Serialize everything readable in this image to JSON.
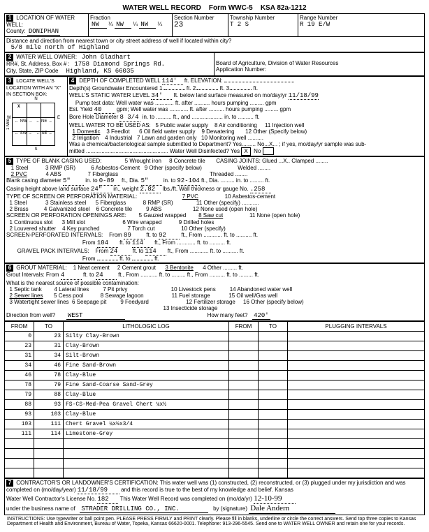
{
  "header": {
    "title": "WATER WELL RECORD",
    "form": "Form WWC-5",
    "ksa": "KSA 82a-1212"
  },
  "loc": {
    "label": "LOCATION OF WATER WELL:",
    "county_label": "County:",
    "county": "DONIPHAN",
    "fraction_label": "Fraction",
    "f1": "NW",
    "f1q": "¼",
    "f2": "NW",
    "f2q": "¼",
    "f3": "NW",
    "f3q": "¼",
    "section_label": "Section Number",
    "section": "23",
    "township_label": "Township Number",
    "township": "T  2   S",
    "range_label": "Range Number",
    "range": "R  19   E/W",
    "dist_label": "Distance and direction from nearest town or city street address of well if located within city?",
    "dist": "5/8 mile north of Highland"
  },
  "owner": {
    "label": "WATER WELL OWNER:",
    "name": "John Gladhart",
    "addr_label": "RR#, St. Address, Box # :",
    "addr": "1758 Diamond Springs Rd.",
    "city_label": "City, State, ZIP Code",
    "city": "Highland, KS  66035",
    "board": "Board of Agriculture, Division of Water Resources",
    "appnum": "Application Number:"
  },
  "locate_box": {
    "label": "LOCATE WELL'S LOCATION WITH AN \"X\" IN SECTION BOX:",
    "mile": "1 Mile",
    "n": "N",
    "s": "S",
    "e": "E",
    "w": "W",
    "nw": "NW",
    "ne": "NE",
    "sw": "SW",
    "se": "SE",
    "x": "X"
  },
  "depth": {
    "label": "DEPTH OF COMPLETED WELL",
    "val": "114'",
    "ft": "ft.",
    "elev_label": "ELEVATION:",
    "gw1": "Depth(s) Groundwater Encountered   1.",
    "gw2": "ft.   2.",
    "gw3": "ft.   3.",
    "static_label": "WELL'S STATIC WATER LEVEL",
    "static": "34'",
    "static_rest": "ft. below land surface measured on mo/day/yr",
    "static_date": "11/18/99",
    "pump_line": "Pump test data:   Well water was ............ ft. after .......... hours pumping ......... gpm",
    "est_yield": "Est. Yield",
    "est_yield_v": "40",
    "est_yield_rest": "gpm;  Well water was ............ ft. after .......... hours pumping ......... gpm",
    "bore": "Bore Hole Diameter",
    "bore_v": "8 3/4",
    "bore_rest": "in. to .......... ft., and .................... in. to .......... ft.",
    "use_label": "WELL WATER TO BE USED AS:",
    "u1": "1 Domestic",
    "u2": "2 Irrigation",
    "u3": "3 Feedlot",
    "u4": "4 Industrial",
    "u5": "5 Public water supply",
    "u6": "6 Oil field water supply",
    "u7": "7 Lawn and garden only",
    "u8": "8 Air conditioning",
    "u9": "9 Dewatering",
    "u10": "10 Monitoring well",
    "u11": "11 Injection well",
    "u12": "12 Other (Specify below)",
    "chem": "Was a chemical/bacteriological sample submitted to Department? Yes......... No...X... ; if yes, mo/day/yr sample was sub-",
    "chem2": "mitted ..................................................... Water Well Disinfected?  Yes",
    "chem_yes": "X",
    "chem_no": "No"
  },
  "casing": {
    "label": "TYPE OF BLANK CASING USED:",
    "c1": "1 Steel",
    "c2": "2 PVC",
    "c3": "3 RMP (SR)",
    "c4": "4 ABS",
    "c5": "5 Wrought iron",
    "c6": "6 Asbestos-Cement",
    "c7": "7 Fiberglass",
    "c8": "8 Concrete tile",
    "c9": "9 Other (specify below)",
    "joints": "CASING JOINTS: Glued ...X.. Clamped ........",
    "joints2": "Welded ........",
    "joints3": "Threaded ........",
    "dia_label": "Blank casing diameter",
    "dia_v": "5\"",
    "dia_to": "in. to",
    "dia_d1": "0-89",
    "dia_mid": "ft., Dia.",
    "dia_v2": "5\"",
    "dia_d2": "92-104",
    "dia_end": "ft., Dia. ......... in. to ......... ft.",
    "ht_label": "Casing height above land surface",
    "ht_v": "24\"",
    "ht_wt": "in., weight",
    "wt_v": "2.82",
    "ht_rest": "lbs./ft. Wall thickness or gauge No.",
    "gauge": ".258",
    "screen_label": "TYPE OF SCREEN OR PERFORATION MATERIAL:",
    "s1": "1 Steel",
    "s2": "2 Brass",
    "s3": "3 Stainless steel",
    "s4": "4 Galvanized steel",
    "s5": "5 Fiberglass",
    "s6": "6 Concrete tile",
    "s7": "7 PVC",
    "s8": "8 RMP (SR)",
    "s9": "9 ABS",
    "s10": "10 Asbestos-cement",
    "s11": "11 Other (specify) ...........",
    "s12": "12 None used (open hole)",
    "open_label": "SCREEN OR PERFORATION OPENINGS ARE:",
    "o1": "1 Continuous slot",
    "o2": "2 Louvered shutter",
    "o3": "3 Mill slot",
    "o4": "4 Key punched",
    "o5": "5 Gauzed wrapped",
    "o6": "6 Wire wrapped",
    "o7": "7 Torch cut",
    "o8": "8 Saw cut",
    "o9": "9 Drilled holes",
    "o10": "10 Other (specify)",
    "o11": "11 None (open hole)",
    "spi_label": "SCREEN-PERFORATED INTERVALS:",
    "spi_from": "From",
    "spi1f": "89",
    "spi1t": "92",
    "spi2f": "104",
    "spi2t": "114",
    "gpi_label": "GRAVEL PACK INTERVALS:",
    "gpi1f": "24",
    "gpi1t": "114",
    "ft_to": "ft. to",
    "ft_from": "ft., From ............ ft. to .......... ft."
  },
  "grout": {
    "label": "GROUT MATERIAL:",
    "g1": "1 Neat cement",
    "g2": "2 Cement grout",
    "g3": "3 Bentonite",
    "g4": "4 Other ......... ft.",
    "gi": "Grout Intervals:  From",
    "gi_f": "4",
    "gi_t": "24",
    "gi_rest": "ft., From ........... ft. to ......... ft., From .......... ft. to ......... ft.",
    "contam": "What is the nearest source of possible contamination:",
    "p1": "1 Septic tank",
    "p2": "2 Sewer lines",
    "p3": "3 Watertight sewer lines",
    "p4": "4 Lateral lines",
    "p5": "5 Cess pool",
    "p6": "6 Seepage pit",
    "p7": "7 Pit privy",
    "p8": "8 Sewage lagoon",
    "p9": "9 Feedyard",
    "p10": "10 Livestock pens",
    "p11": "11 Fuel storage",
    "p12": "12 Fertilizer storage",
    "p13": "13 Insecticide storage",
    "p14": "14 Abandoned water well",
    "p15": "15 Oil well/Gas well",
    "p16": "16 Other (specify below)",
    "dir_label": "Direction from well?",
    "dir": "WEST",
    "feet_label": "How many feet?",
    "feet": "420'"
  },
  "lith": {
    "h_from": "FROM",
    "h_to": "TO",
    "h_log": "LITHOLOGIC LOG",
    "h_from2": "FROM",
    "h_to2": "TO",
    "h_plug": "PLUGGING INTERVALS",
    "rows": [
      {
        "f": "0",
        "t": "23",
        "d": "Silty Clay-Brown"
      },
      {
        "f": "23",
        "t": "31",
        "d": "Clay-Brown"
      },
      {
        "f": "31",
        "t": "34",
        "d": "Silt-Brown"
      },
      {
        "f": "34",
        "t": "46",
        "d": "Fine Sand-Brown"
      },
      {
        "f": "46",
        "t": "78",
        "d": "Clay-Blue"
      },
      {
        "f": "78",
        "t": "79",
        "d": "Fine Sand-Coarse Sand-Grey"
      },
      {
        "f": "79",
        "t": "88",
        "d": "Clay-Blue"
      },
      {
        "f": "88",
        "t": "93",
        "d": "FS-CS-Med-Pea Gravel Chert ¼x½"
      },
      {
        "f": "93",
        "t": "103",
        "d": "Clay-Blue"
      },
      {
        "f": "103",
        "t": "111",
        "d": "Chert Gravel ¼x½x3/4"
      },
      {
        "f": "111",
        "t": "114",
        "d": "Limestone-Grey"
      }
    ]
  },
  "cert": {
    "text1": "CONTRACTOR'S OR LANDOWNER'S CERTIFICATION: This water well was (1) constructed, (2) reconstructed, or (3) plugged under my jurisdiction and was",
    "text2": "completed on (mo/day/year)",
    "date": "11/18/99",
    "text3": "and this record is true to the best of my knowledge and belief. Kansas",
    "text4": "Water Well Contractor's License No.",
    "lic": "182",
    "text5": "This Water Well Record was completed on (mo/da/yr)",
    "date2": "12-10-99",
    "text6": "under the business name of",
    "biz": "STRADER DRILLING CO., INC.",
    "siglabel": "by (signature)",
    "sig": "Dale Andern"
  },
  "instr": "INSTRUCTIONS: Use typewriter or ball point pen. PLEASE PRESS FIRMLY and PRINT clearly. Please fill in blanks, underline or circle the correct answers. Send top three copies to Kansas Department of Health and Environment, Bureau of Water, Topeka, Kansas 66620-0001. Telephone: 913-296-5545. Send one to WATER WELL OWNER and retain one for your records."
}
